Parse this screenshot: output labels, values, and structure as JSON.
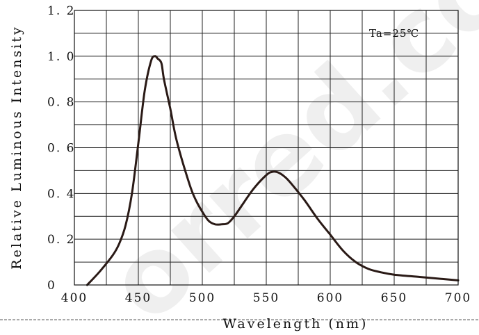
{
  "watermark": "orred.com",
  "chart_data": {
    "type": "line",
    "xlabel": "Wavelength  (nm)",
    "ylabel": "Relative Luminous Intensity",
    "annotation": "Ta=25℃",
    "xlim": [
      400,
      700
    ],
    "ylim": [
      0,
      1.2
    ],
    "x_ticks": [
      400,
      450,
      500,
      550,
      600,
      650,
      700
    ],
    "x_tick_labels": [
      "400",
      "450",
      "500",
      "550",
      "600",
      "650",
      "700"
    ],
    "y_ticks": [
      0,
      0.2,
      0.4,
      0.6,
      0.8,
      1.0,
      1.2
    ],
    "y_tick_labels": [
      "0",
      "0. 2",
      "0. 4",
      "0. 6",
      "0. 8",
      "1. 0",
      "1. 2"
    ],
    "grid": true,
    "series_color": "#2a1a16",
    "series": [
      {
        "x": [
          410,
          420,
          430,
          435,
          440,
          445,
          450,
          455,
          460,
          463,
          465,
          468,
          470,
          475,
          480,
          490,
          495,
          500,
          505,
          510,
          515,
          520,
          525,
          530,
          540,
          550,
          555,
          560,
          565,
          570,
          580,
          590,
          600,
          610,
          620,
          630,
          640,
          650,
          670,
          690,
          700
        ],
        "y": [
          0.0,
          0.06,
          0.13,
          0.18,
          0.26,
          0.4,
          0.62,
          0.85,
          0.98,
          1.0,
          0.99,
          0.97,
          0.9,
          0.77,
          0.63,
          0.44,
          0.37,
          0.32,
          0.28,
          0.265,
          0.265,
          0.27,
          0.3,
          0.34,
          0.42,
          0.48,
          0.495,
          0.49,
          0.47,
          0.44,
          0.37,
          0.29,
          0.22,
          0.15,
          0.1,
          0.07,
          0.055,
          0.045,
          0.035,
          0.025,
          0.02
        ]
      }
    ]
  }
}
